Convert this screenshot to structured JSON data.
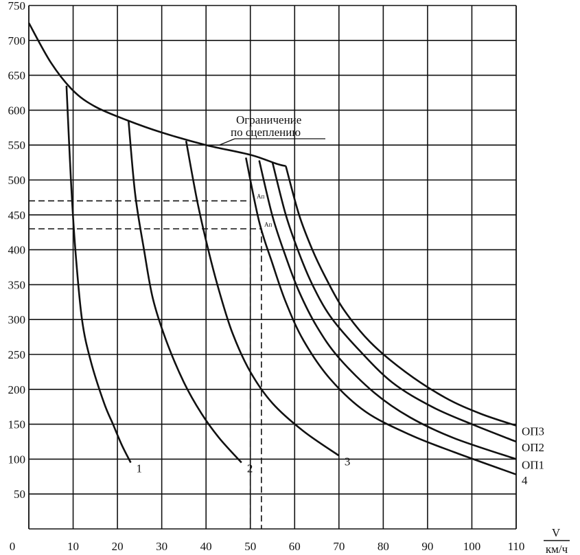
{
  "chart_data": {
    "type": "line",
    "xlabel": "V",
    "xunit": "км/ч",
    "xlim": [
      0,
      110
    ],
    "ylim": [
      0,
      750
    ],
    "x_ticks": [
      0,
      10,
      20,
      30,
      40,
      50,
      60,
      70,
      80,
      90,
      100,
      110
    ],
    "y_ticks": [
      50,
      100,
      150,
      200,
      250,
      300,
      350,
      400,
      450,
      500,
      550,
      600,
      650,
      700,
      750
    ],
    "grid": true,
    "adhesion_label": "Ограничение по сцеплению",
    "adhesion_label_lines": [
      "Ограничение",
      "по сцеплению"
    ],
    "point_label_1": "Aп",
    "point_label_2": "Aп",
    "series": [
      {
        "name": "Ограничение по сцеплению",
        "x": [
          0,
          5,
          10,
          15,
          22,
          30,
          40,
          50,
          56,
          58
        ],
        "y": [
          725,
          668,
          628,
          605,
          586,
          568,
          550,
          536,
          523,
          520
        ]
      },
      {
        "name": "1",
        "x": [
          8.5,
          9.5,
          10.5,
          12,
          14,
          17,
          19,
          21,
          23
        ],
        "y": [
          635,
          500,
          400,
          300,
          240,
          180,
          150,
          120,
          95
        ]
      },
      {
        "name": "2",
        "x": [
          22.5,
          24,
          26,
          28,
          31,
          35,
          39,
          43,
          48
        ],
        "y": [
          585,
          480,
          400,
          330,
          270,
          210,
          165,
          130,
          95
        ]
      },
      {
        "name": "3",
        "x": [
          35.5,
          38,
          40.5,
          43,
          46,
          50,
          55,
          62,
          70
        ],
        "y": [
          556,
          470,
          400,
          340,
          280,
          225,
          180,
          140,
          105
        ]
      },
      {
        "name": "4",
        "x": [
          49,
          52,
          55,
          58,
          62,
          68,
          76,
          86,
          96,
          110
        ],
        "y": [
          532,
          440,
          380,
          325,
          270,
          215,
          168,
          135,
          110,
          78
        ]
      },
      {
        "name": "ОП1",
        "x": [
          52,
          55,
          58,
          61,
          65,
          70,
          78,
          86,
          96,
          110
        ],
        "y": [
          528,
          448,
          390,
          340,
          290,
          245,
          195,
          160,
          130,
          100
        ]
      },
      {
        "name": "ОП2",
        "x": [
          55,
          58,
          61,
          64,
          68,
          74,
          82,
          91,
          100,
          110
        ],
        "y": [
          525,
          450,
          395,
          350,
          305,
          260,
          210,
          175,
          150,
          125
        ]
      },
      {
        "name": "ОП3",
        "x": [
          58,
          61,
          64,
          67,
          71,
          77,
          85,
          94,
          102,
          110
        ],
        "y": [
          520,
          450,
          400,
          360,
          315,
          268,
          225,
          188,
          165,
          148
        ]
      }
    ],
    "dashed_guides": [
      {
        "h_y": 470,
        "x_to": 50
      },
      {
        "h_y": 430,
        "x_to": 52.5
      }
    ]
  }
}
